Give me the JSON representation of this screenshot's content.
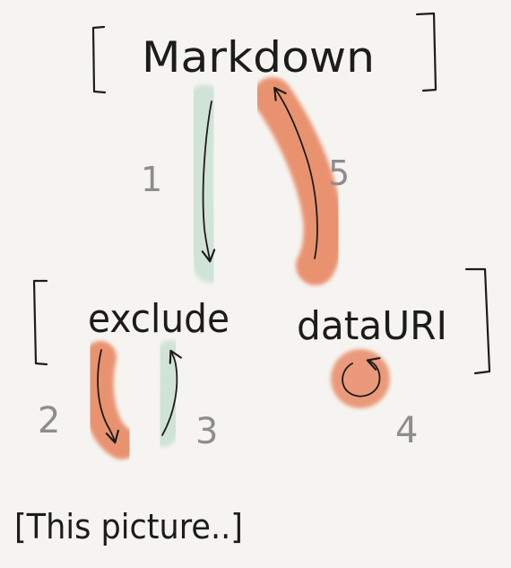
{
  "nodes": {
    "top": "Markdown",
    "left": "exclude",
    "right": "dataURI",
    "footer": "[This picture..]"
  },
  "steps": {
    "s1": "1",
    "s2": "2",
    "s3": "3",
    "s4": "4",
    "s5": "5"
  },
  "colors": {
    "background": "#f5f4f0",
    "ink": "#1c1c1c",
    "number": "#8d8d8d",
    "green_stroke": "#cfe3d6",
    "orange_stroke": "#e98a66"
  }
}
